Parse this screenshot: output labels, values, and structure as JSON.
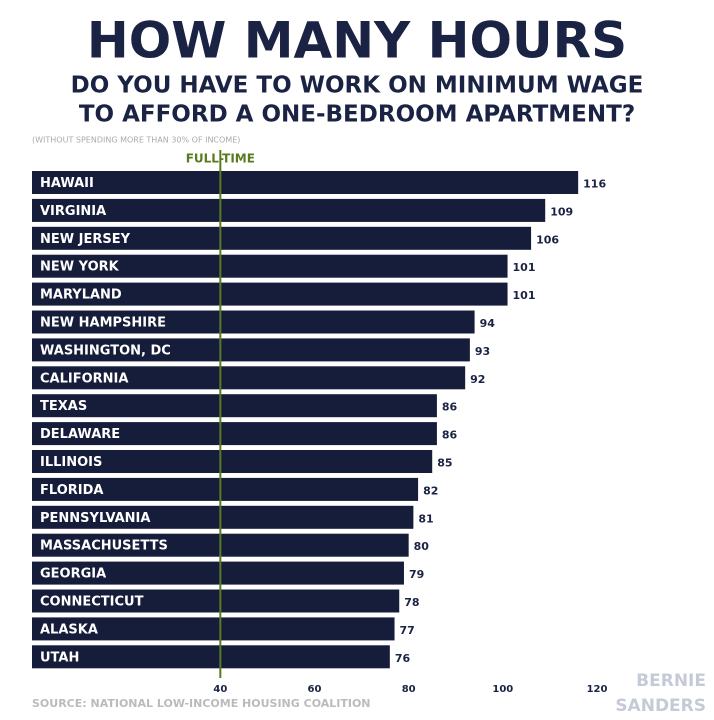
{
  "chart_data": {
    "type": "barh",
    "title": "HOW MANY HOURS",
    "subtitle": [
      "DO YOU HAVE TO WORK ON MINIMUM WAGE",
      "TO AFFORD A ONE-BEDROOM APARTMENT?"
    ],
    "note": "(WITHOUT SPENDING MORE THAN 30% OF INCOME)",
    "source": "SOURCE: NATIONAL LOW-INCOME HOUSING COALITION",
    "logo": [
      "BERNIE",
      "SANDERS"
    ],
    "categories": [
      "HAWAII",
      "VIRGINIA",
      "NEW JERSEY",
      "NEW YORK",
      "MARYLAND",
      "NEW HAMPSHIRE",
      "WASHINGTON, DC",
      "CALIFORNIA",
      "TEXAS",
      "DELAWARE",
      "ILLINOIS",
      "FLORIDA",
      "PENNSYLVANIA",
      "MASSACHUSETTS",
      "GEORGIA",
      "CONNECTICUT",
      "ALASKA",
      "UTAH"
    ],
    "values": [
      116,
      109,
      106,
      101,
      101,
      94,
      93,
      92,
      86,
      86,
      85,
      82,
      81,
      80,
      79,
      78,
      77,
      76
    ],
    "color": "#161d3b",
    "xlim": [
      0,
      120
    ],
    "xticks": [
      40,
      60,
      80,
      100,
      120
    ],
    "reference_line": {
      "value": 40,
      "label": "FULL-TIME",
      "color": "#5a7a1e"
    }
  }
}
